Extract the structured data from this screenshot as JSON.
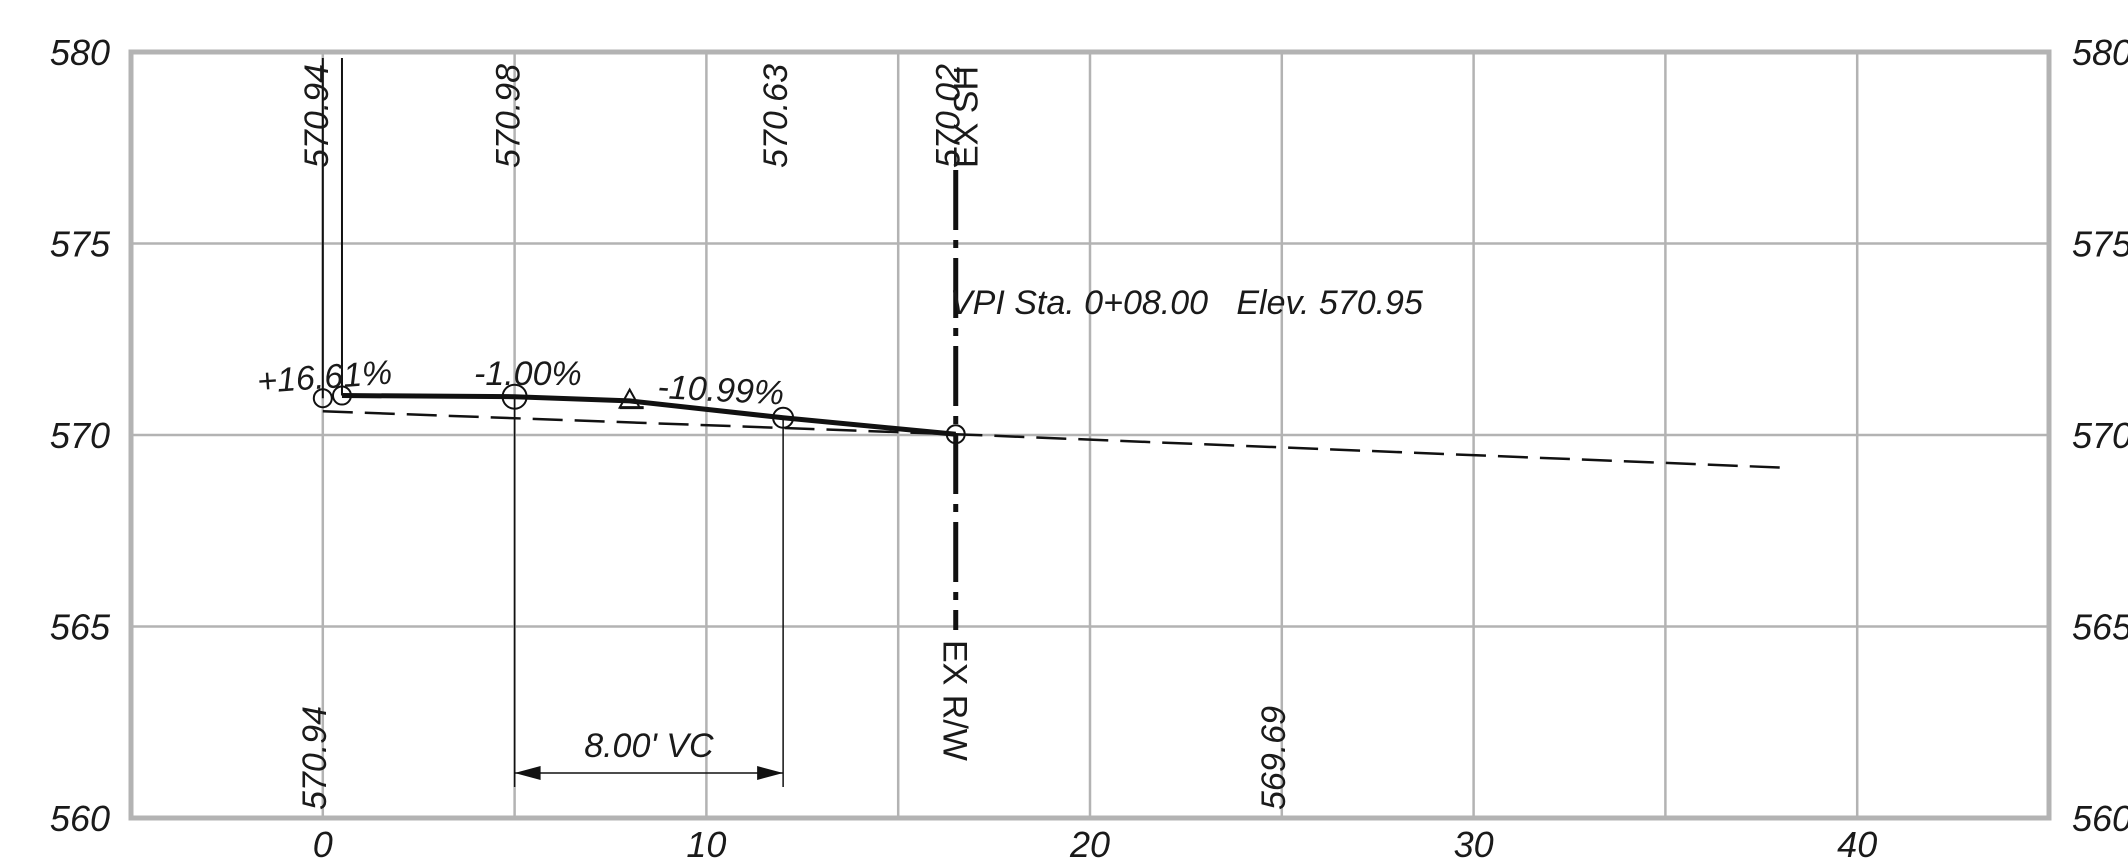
{
  "profile": {
    "y_axis": {
      "min": 560,
      "max": 580,
      "ticks_left": [
        "580",
        "575",
        "570",
        "565",
        "560"
      ],
      "ticks_right": [
        "580",
        "575",
        "570",
        "565",
        "560"
      ]
    },
    "x_axis": {
      "min": -5,
      "max": 45,
      "ticks": [
        "0",
        "10",
        "20",
        "30",
        "40"
      ]
    },
    "top_elevations": [
      "570.94",
      "570.98",
      "570.63",
      "570.02"
    ],
    "top_elevation_stations": [
      0,
      5,
      12,
      16.5
    ],
    "bottom_elevations": [
      "570.94",
      "569.69"
    ],
    "bottom_elevation_stations": [
      0,
      25
    ],
    "grades": [
      "+16.61%",
      "-1.00%",
      "-10.99%"
    ],
    "vpi_label": "VPI Sta. 0+08.00   Elev. 570.95",
    "vertical_curve_label": "8.00' VC",
    "vertical_curve_range": [
      5,
      12
    ],
    "ex_sh_label": "EX SH",
    "ex_rw_label": "EX R/W",
    "ex_line_station": 16.5,
    "proposed_profile": {
      "x": [
        0.5,
        5,
        8,
        12,
        16.5
      ],
      "y": [
        571.03,
        571.0,
        570.89,
        570.45,
        570.02
      ]
    },
    "existing_ground": {
      "x": [
        0,
        16.5,
        38
      ],
      "y": [
        570.62,
        570.02,
        569.15
      ]
    },
    "pvi_marker": {
      "x": 8,
      "y": 570.95
    }
  }
}
